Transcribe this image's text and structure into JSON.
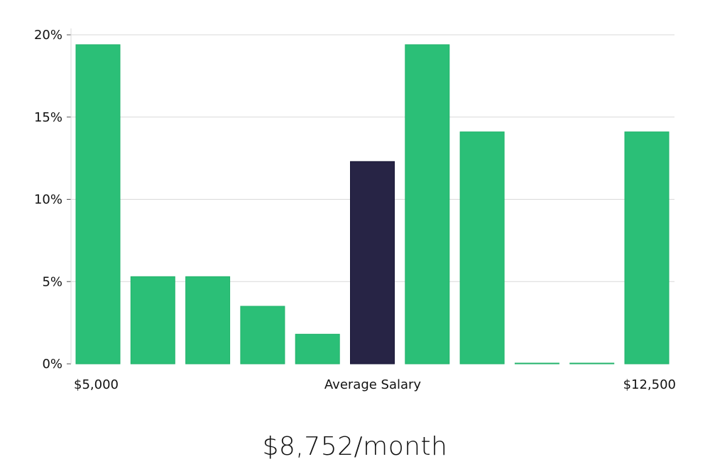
{
  "chart_data": {
    "type": "bar",
    "categories": [
      "$5,000",
      "",
      "",
      "",
      "",
      "Average Salary",
      "",
      "",
      "",
      "",
      "$12,500"
    ],
    "values": [
      19.4,
      5.3,
      5.3,
      3.5,
      1.8,
      12.3,
      19.4,
      14.1,
      0,
      0,
      14.1
    ],
    "highlight_index": 5,
    "ylim": [
      0,
      20
    ],
    "yticks": [
      0,
      5,
      10,
      15,
      20
    ],
    "ytick_labels": [
      "0%",
      "5%",
      "10%",
      "15%",
      "20%"
    ],
    "x_tick_labels": [
      "$5,000",
      "Average Salary",
      "$12,500"
    ],
    "grid": true,
    "colors": {
      "bar": "#2bbf77",
      "highlight": "#272445",
      "grid": "#d9d9d9"
    }
  },
  "caption": "$8,752/month"
}
